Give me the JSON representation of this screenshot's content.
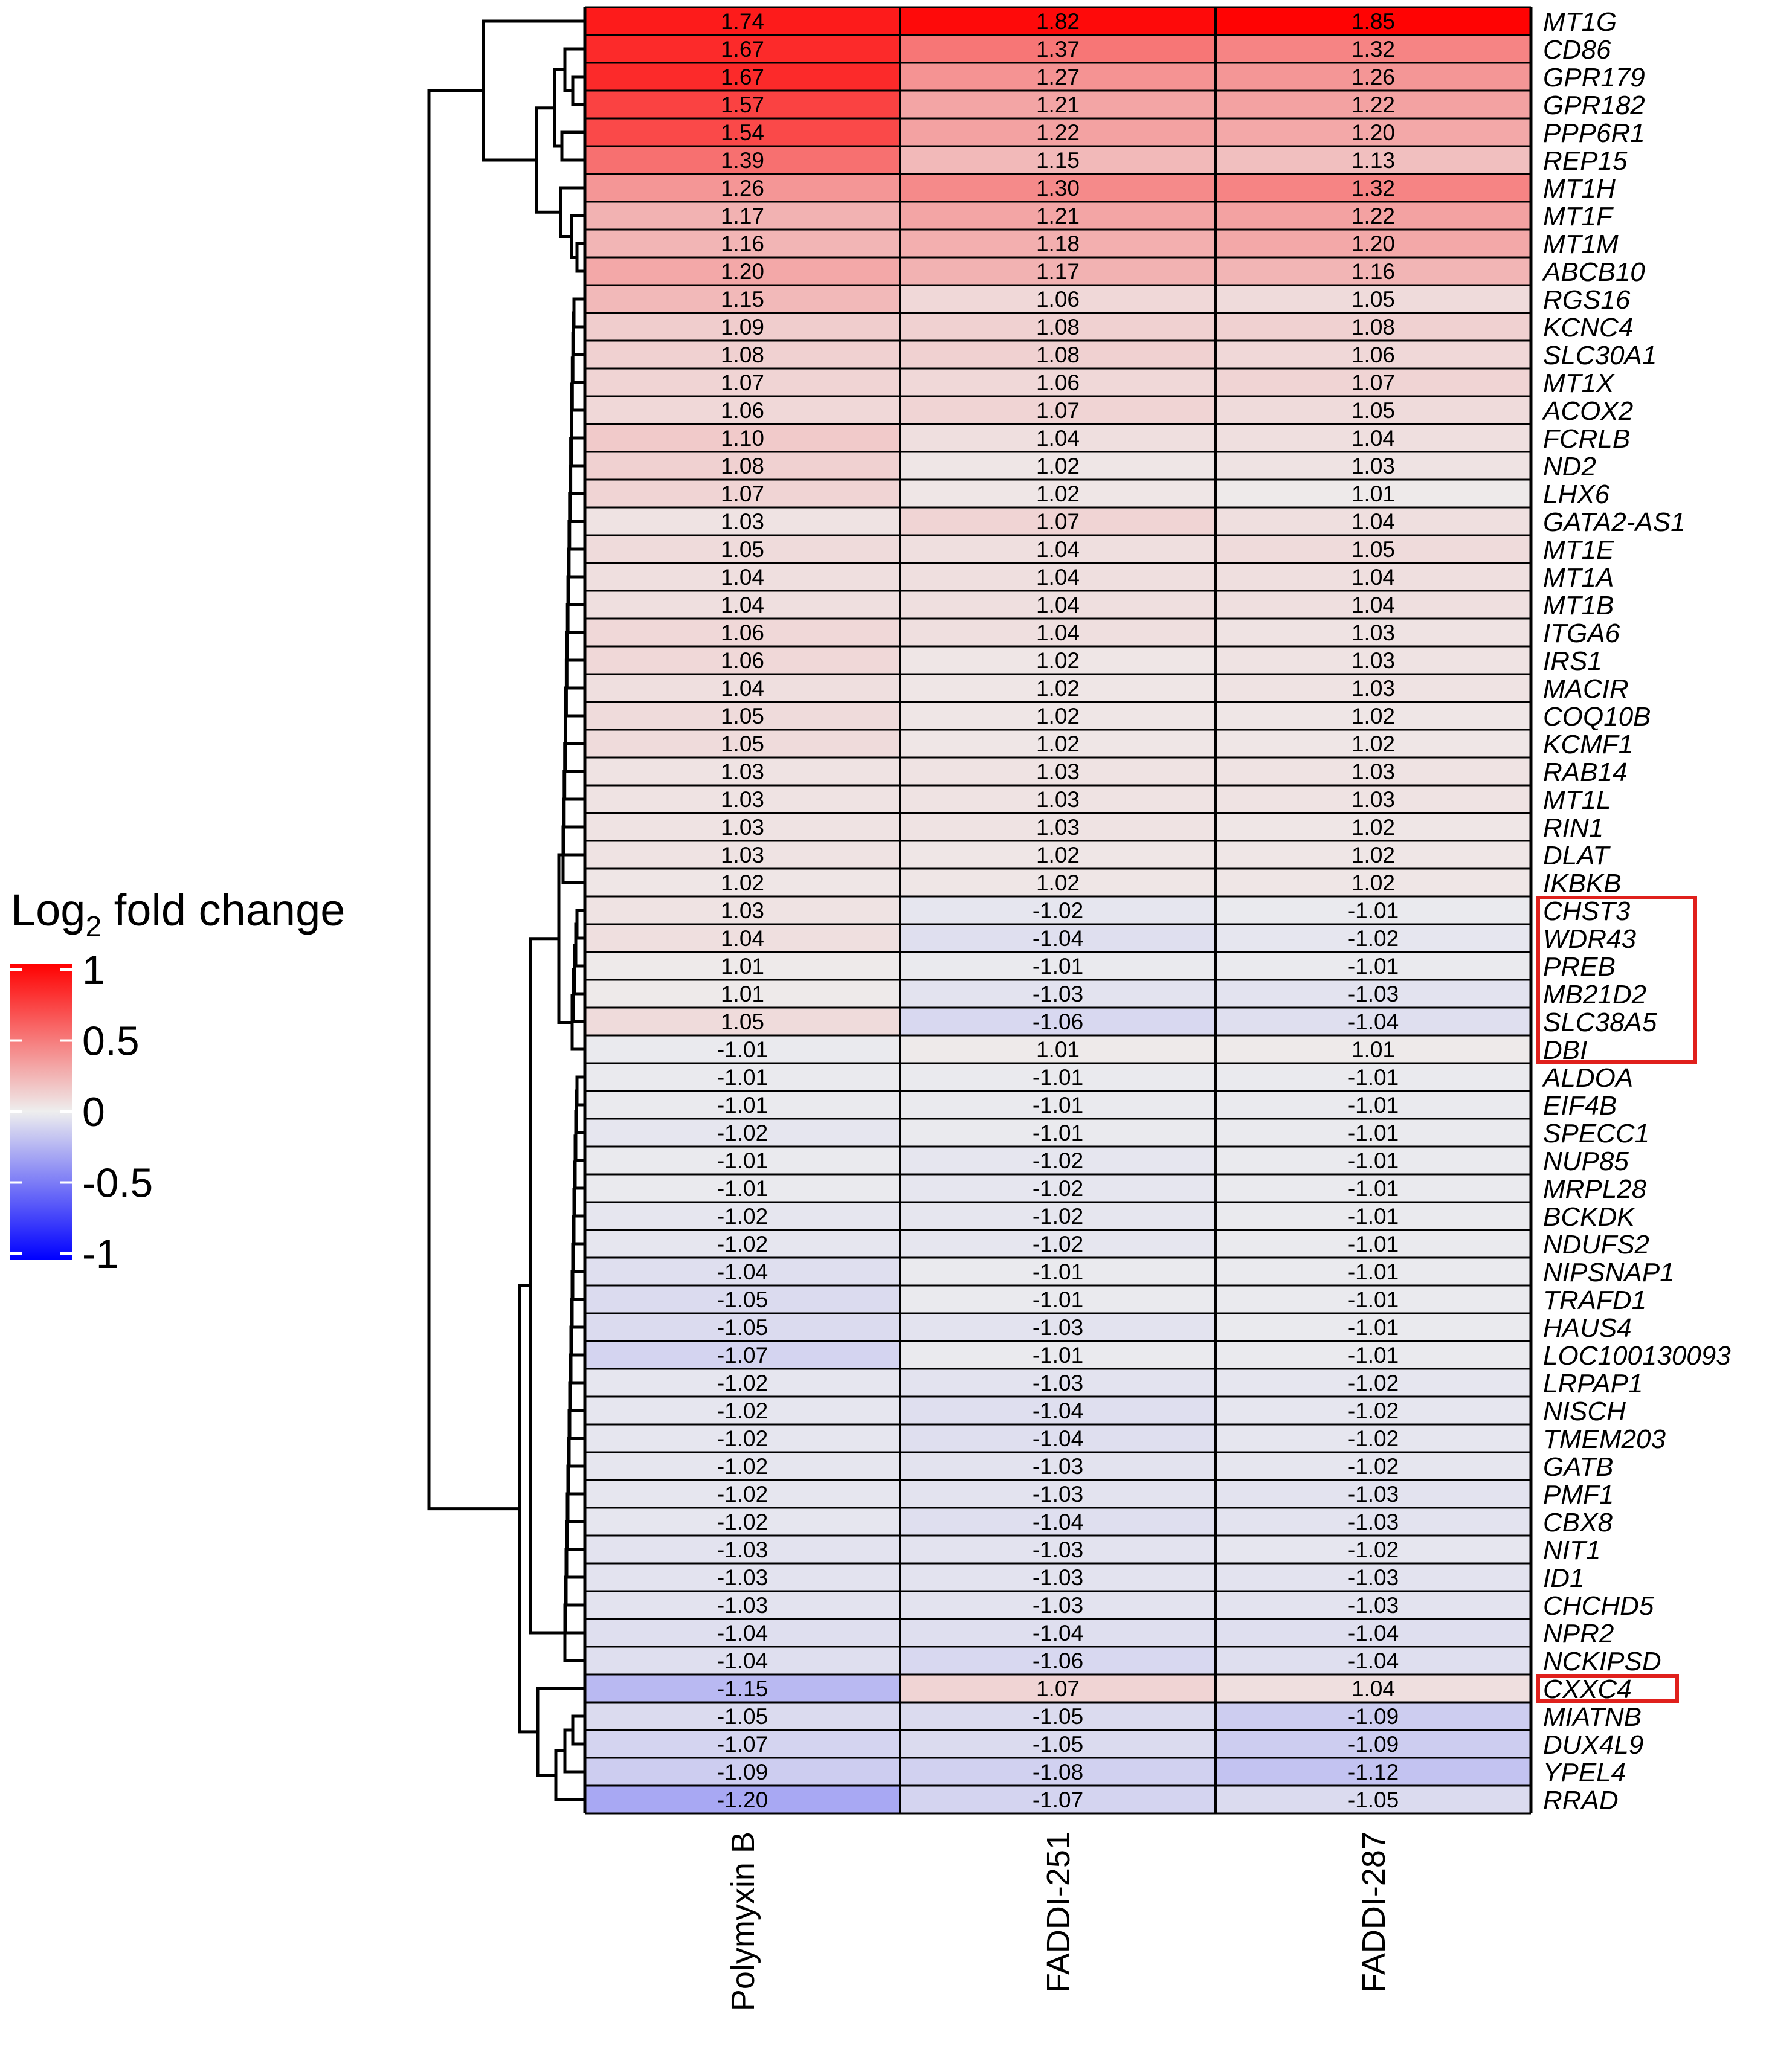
{
  "chart_data": {
    "type": "heatmap",
    "title": "",
    "columns": [
      "Polymyxin B",
      "FADDI-251",
      "FADDI-287"
    ],
    "rows": [
      "MT1G",
      "CD86",
      "GPR179",
      "GPR182",
      "PPP6R1",
      "REP15",
      "MT1H",
      "MT1F",
      "MT1M",
      "ABCB10",
      "RGS16",
      "KCNC4",
      "SLC30A1",
      "MT1X",
      "ACOX2",
      "FCRLB",
      "ND2",
      "LHX6",
      "GATA2-AS1",
      "MT1E",
      "MT1A",
      "MT1B",
      "ITGA6",
      "IRS1",
      "MACIR",
      "COQ10B",
      "KCMF1",
      "RAB14",
      "MT1L",
      "RIN1",
      "DLAT",
      "IKBKB",
      "CHST3",
      "WDR43",
      "PREB",
      "MB21D2",
      "SLC38A5",
      "DBI",
      "ALDOA",
      "EIF4B",
      "SPECC1",
      "NUP85",
      "MRPL28",
      "BCKDK",
      "NDUFS2",
      "NIPSNAP1",
      "TRAFD1",
      "HAUS4",
      "LOC100130093",
      "LRPAP1",
      "NISCH",
      "TMEM203",
      "GATB",
      "PMF1",
      "CBX8",
      "NIT1",
      "ID1",
      "CHCHD5",
      "NPR2",
      "NCKIPSD",
      "CXXC4",
      "MIATNB",
      "DUX4L9",
      "YPEL4",
      "RRAD"
    ],
    "values": [
      [
        "1.74",
        "1.82",
        "1.85"
      ],
      [
        "1.67",
        "1.37",
        "1.32"
      ],
      [
        "1.67",
        "1.27",
        "1.26"
      ],
      [
        "1.57",
        "1.21",
        "1.22"
      ],
      [
        "1.54",
        "1.22",
        "1.20"
      ],
      [
        "1.39",
        "1.15",
        "1.13"
      ],
      [
        "1.26",
        "1.30",
        "1.32"
      ],
      [
        "1.17",
        "1.21",
        "1.22"
      ],
      [
        "1.16",
        "1.18",
        "1.20"
      ],
      [
        "1.20",
        "1.17",
        "1.16"
      ],
      [
        "1.15",
        "1.06",
        "1.05"
      ],
      [
        "1.09",
        "1.08",
        "1.08"
      ],
      [
        "1.08",
        "1.08",
        "1.06"
      ],
      [
        "1.07",
        "1.06",
        "1.07"
      ],
      [
        "1.06",
        "1.07",
        "1.05"
      ],
      [
        "1.10",
        "1.04",
        "1.04"
      ],
      [
        "1.08",
        "1.02",
        "1.03"
      ],
      [
        "1.07",
        "1.02",
        "1.01"
      ],
      [
        "1.03",
        "1.07",
        "1.04"
      ],
      [
        "1.05",
        "1.04",
        "1.05"
      ],
      [
        "1.04",
        "1.04",
        "1.04"
      ],
      [
        "1.04",
        "1.04",
        "1.04"
      ],
      [
        "1.06",
        "1.04",
        "1.03"
      ],
      [
        "1.06",
        "1.02",
        "1.03"
      ],
      [
        "1.04",
        "1.02",
        "1.03"
      ],
      [
        "1.05",
        "1.02",
        "1.02"
      ],
      [
        "1.05",
        "1.02",
        "1.02"
      ],
      [
        "1.03",
        "1.03",
        "1.03"
      ],
      [
        "1.03",
        "1.03",
        "1.03"
      ],
      [
        "1.03",
        "1.03",
        "1.02"
      ],
      [
        "1.03",
        "1.02",
        "1.02"
      ],
      [
        "1.02",
        "1.02",
        "1.02"
      ],
      [
        "1.03",
        "-1.02",
        "-1.01"
      ],
      [
        "1.04",
        "-1.04",
        "-1.02"
      ],
      [
        "1.01",
        "-1.01",
        "-1.01"
      ],
      [
        "1.01",
        "-1.03",
        "-1.03"
      ],
      [
        "1.05",
        "-1.06",
        "-1.04"
      ],
      [
        "-1.01",
        "1.01",
        "1.01"
      ],
      [
        "-1.01",
        "-1.01",
        "-1.01"
      ],
      [
        "-1.01",
        "-1.01",
        "-1.01"
      ],
      [
        "-1.02",
        "-1.01",
        "-1.01"
      ],
      [
        "-1.01",
        "-1.02",
        "-1.01"
      ],
      [
        "-1.01",
        "-1.02",
        "-1.01"
      ],
      [
        "-1.02",
        "-1.02",
        "-1.01"
      ],
      [
        "-1.02",
        "-1.02",
        "-1.01"
      ],
      [
        "-1.04",
        "-1.01",
        "-1.01"
      ],
      [
        "-1.05",
        "-1.01",
        "-1.01"
      ],
      [
        "-1.05",
        "-1.03",
        "-1.01"
      ],
      [
        "-1.07",
        "-1.01",
        "-1.01"
      ],
      [
        "-1.02",
        "-1.03",
        "-1.02"
      ],
      [
        "-1.02",
        "-1.04",
        "-1.02"
      ],
      [
        "-1.02",
        "-1.04",
        "-1.02"
      ],
      [
        "-1.02",
        "-1.03",
        "-1.02"
      ],
      [
        "-1.02",
        "-1.03",
        "-1.03"
      ],
      [
        "-1.02",
        "-1.04",
        "-1.03"
      ],
      [
        "-1.03",
        "-1.03",
        "-1.02"
      ],
      [
        "-1.03",
        "-1.03",
        "-1.03"
      ],
      [
        "-1.03",
        "-1.03",
        "-1.03"
      ],
      [
        "-1.04",
        "-1.04",
        "-1.04"
      ],
      [
        "-1.04",
        "-1.06",
        "-1.04"
      ],
      [
        "-1.15",
        "1.07",
        "1.04"
      ],
      [
        "-1.05",
        "-1.05",
        "-1.09"
      ],
      [
        "-1.07",
        "-1.05",
        "-1.09"
      ],
      [
        "-1.09",
        "-1.08",
        "-1.12"
      ],
      [
        "-1.20",
        "-1.07",
        "-1.05"
      ]
    ],
    "highlighted_rows": [
      "CHST3",
      "WDR43",
      "PREB",
      "MB21D2",
      "SLC38A5",
      "DBI",
      "CXXC4"
    ],
    "highlight_color": "#e0201c",
    "color_scale": {
      "title_main": "Log",
      "title_sub": "2",
      "title_rest": " fold change",
      "ticks": [
        "1",
        "0.5",
        "0",
        "-0.5",
        "-1"
      ],
      "low_color": "#0000ff",
      "mid_color": "#eeeeee",
      "high_color": "#ff0000",
      "range": [
        -1,
        1
      ]
    },
    "dendrogram": "row clustering (left side)"
  }
}
